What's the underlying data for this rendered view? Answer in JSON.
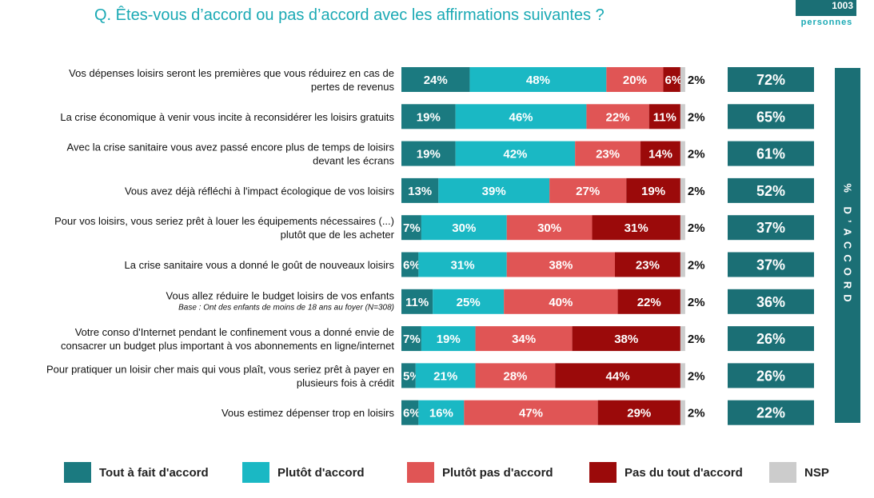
{
  "title": "Q. Êtes-vous d’accord ou pas d’accord avec les affirmations suivantes ?",
  "base": {
    "count": "1003",
    "unit": "personnes"
  },
  "accord_label": "% D’ACCORD",
  "colors": {
    "tout_a_fait": "#1b7a80",
    "plutot": "#1ab8c4",
    "plutot_pas": "#e05555",
    "pas_du_tout": "#9b0a0a",
    "nsp": "#cccccc",
    "total": "#1b6f75",
    "title": "#1aa9b4"
  },
  "legend": [
    {
      "label": "Tout à fait d'accord",
      "color": "#1b7a80"
    },
    {
      "label": "Plutôt d'accord",
      "color": "#1ab8c4"
    },
    {
      "label": "Plutôt pas d'accord",
      "color": "#e05555"
    },
    {
      "label": "Pas du tout d'accord",
      "color": "#9b0a0a"
    },
    {
      "label": "NSP",
      "color": "#cccccc"
    }
  ],
  "chart_data": {
    "type": "bar",
    "orientation": "horizontal",
    "stacked": true,
    "categories": [
      [
        "Vos dépenses loisirs seront les premières que vous réduirez en cas de",
        "pertes de revenus"
      ],
      [
        "La crise économique à venir vous incite à reconsidérer les loisirs gratuits"
      ],
      [
        "Avec la crise sanitaire vous avez passé encore plus de temps de loisirs",
        "devant les écrans"
      ],
      [
        "Vous avez déjà réfléchi à l'impact écologique de vos loisirs"
      ],
      [
        "Pour vos loisirs, vous seriez prêt à louer les équipements nécessaires (...)",
        "plutôt que de les acheter"
      ],
      [
        "La crise sanitaire vous a donné le goût de nouveaux loisirs"
      ],
      [
        "Vous allez réduire le budget loisirs de vos enfants"
      ],
      [
        "Votre conso d'Internet pendant le confinement vous a donné envie de",
        "consacrer un budget plus important à vos abonnements en ligne/internet"
      ],
      [
        "Pour pratiquer un loisir cher mais qui vous plaît, vous seriez prêt à payer en",
        "plusieurs fois à crédit"
      ],
      [
        "Vous estimez dépenser trop en loisirs"
      ]
    ],
    "notes": [
      "",
      "",
      "",
      "",
      "",
      "",
      "Base : Ont des enfants de moins de 18 ans au foyer (N=308)",
      "",
      "",
      ""
    ],
    "series": [
      {
        "name": "Tout à fait d'accord",
        "values": [
          24,
          19,
          19,
          13,
          7,
          6,
          11,
          7,
          5,
          6
        ]
      },
      {
        "name": "Plutôt d'accord",
        "values": [
          48,
          46,
          42,
          39,
          30,
          31,
          25,
          19,
          21,
          16
        ]
      },
      {
        "name": "Plutôt pas d'accord",
        "values": [
          20,
          22,
          23,
          27,
          30,
          38,
          40,
          34,
          28,
          47
        ]
      },
      {
        "name": "Pas du tout d'accord",
        "values": [
          6,
          11,
          14,
          19,
          31,
          23,
          22,
          38,
          44,
          29
        ]
      },
      {
        "name": "NSP",
        "values": [
          2,
          2,
          2,
          2,
          2,
          2,
          2,
          2,
          2,
          2
        ]
      }
    ],
    "totals_accord": [
      72,
      65,
      61,
      52,
      37,
      37,
      36,
      26,
      26,
      22
    ],
    "xlim": [
      0,
      100
    ],
    "legend_position": "bottom"
  }
}
